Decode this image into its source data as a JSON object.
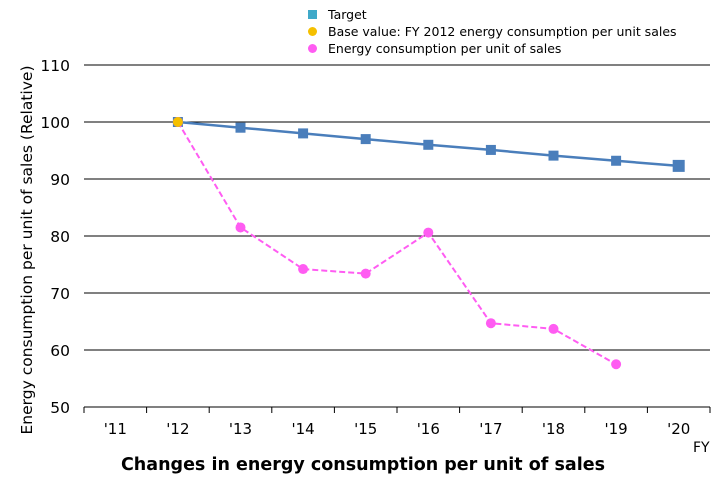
{
  "chart_data": {
    "type": "line",
    "title": "Changes in energy consumption per unit of sales",
    "xlabel": "FY",
    "ylabel": "Energy consumption per unit of sales (Relative)",
    "ylim": [
      50,
      110
    ],
    "yticks": [
      50,
      60,
      70,
      80,
      90,
      100,
      110
    ],
    "categories": [
      "'11",
      "'12",
      "'13",
      "'14",
      "'15",
      "'16",
      "'17",
      "'18",
      "'19",
      "'20"
    ],
    "grid": true,
    "legend_position": "top-center",
    "series": [
      {
        "name": "Target",
        "style": "solid",
        "marker": "square",
        "color": "#4a7ebb",
        "legend_color": "#3fa9c9",
        "values": [
          null,
          100,
          99,
          98,
          97,
          96,
          95.1,
          94.1,
          93.2,
          92.3
        ]
      },
      {
        "name": "Base value: FY 2012 energy consumption per unit sales",
        "style": "none",
        "marker": "circle",
        "color": "#f5c000",
        "values": [
          null,
          100,
          null,
          null,
          null,
          null,
          null,
          null,
          null,
          null
        ]
      },
      {
        "name": "Energy consumption per unit of sales",
        "style": "dashed",
        "marker": "circle",
        "color": "#ff5cf2",
        "values": [
          null,
          100,
          81.5,
          74.2,
          73.4,
          80.6,
          64.7,
          63.7,
          57.5,
          null
        ]
      }
    ]
  }
}
